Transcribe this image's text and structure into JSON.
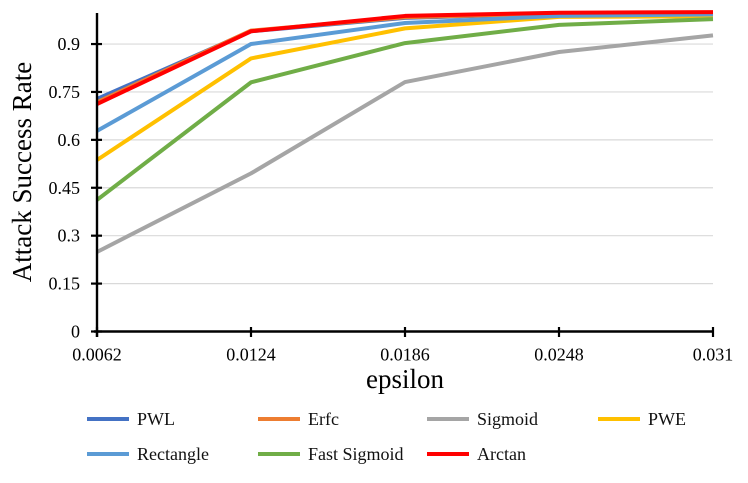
{
  "chart_data": {
    "type": "line",
    "xlabel": "epsilon",
    "ylabel": "Attack Success Rate",
    "x": [
      0.0062,
      0.0124,
      0.0186,
      0.0248,
      0.031
    ],
    "x_tick_labels": [
      "0.0062",
      "0.0124",
      "0.0186",
      "0.0248",
      "0.031"
    ],
    "y_tick_values": [
      0,
      0.15,
      0.3,
      0.45,
      0.6,
      0.75,
      0.9
    ],
    "y_tick_labels": [
      "0",
      "0.15",
      "0.3",
      "0.45",
      "0.6",
      "0.75",
      "0.9"
    ],
    "ylim": [
      0,
      1.0
    ],
    "grid": "horizontal-only",
    "legend_position": "bottom",
    "legend_rows": [
      [
        "PWL",
        "Erfc",
        "Sigmoid",
        "PWE"
      ],
      [
        "Rectangle",
        "Fast Sigmoid",
        "Arctan"
      ]
    ],
    "series": [
      {
        "name": "PWL",
        "color": "#4472C4",
        "values": [
          0.728,
          0.94,
          0.982,
          0.995,
          0.998
        ]
      },
      {
        "name": "Erfc",
        "color": "#ED7D31",
        "values": [
          0.718,
          0.942,
          0.984,
          0.996,
          0.998
        ]
      },
      {
        "name": "Sigmoid",
        "color": "#A5A5A5",
        "values": [
          0.249,
          0.495,
          0.781,
          0.875,
          0.927
        ]
      },
      {
        "name": "PWE",
        "color": "#FFC000",
        "values": [
          0.537,
          0.855,
          0.949,
          0.985,
          0.987
        ]
      },
      {
        "name": "Rectangle",
        "color": "#5B9BD5",
        "values": [
          0.628,
          0.9,
          0.966,
          0.988,
          0.993
        ]
      },
      {
        "name": "Fast Sigmoid",
        "color": "#70AD47",
        "values": [
          0.412,
          0.78,
          0.903,
          0.96,
          0.978
        ]
      },
      {
        "name": "Arctan",
        "color": "#FF0000",
        "values": [
          0.712,
          0.94,
          0.988,
          0.998,
          1.0
        ]
      }
    ],
    "axis_color": "#000000",
    "gridline_color": "#D9D9D9"
  }
}
